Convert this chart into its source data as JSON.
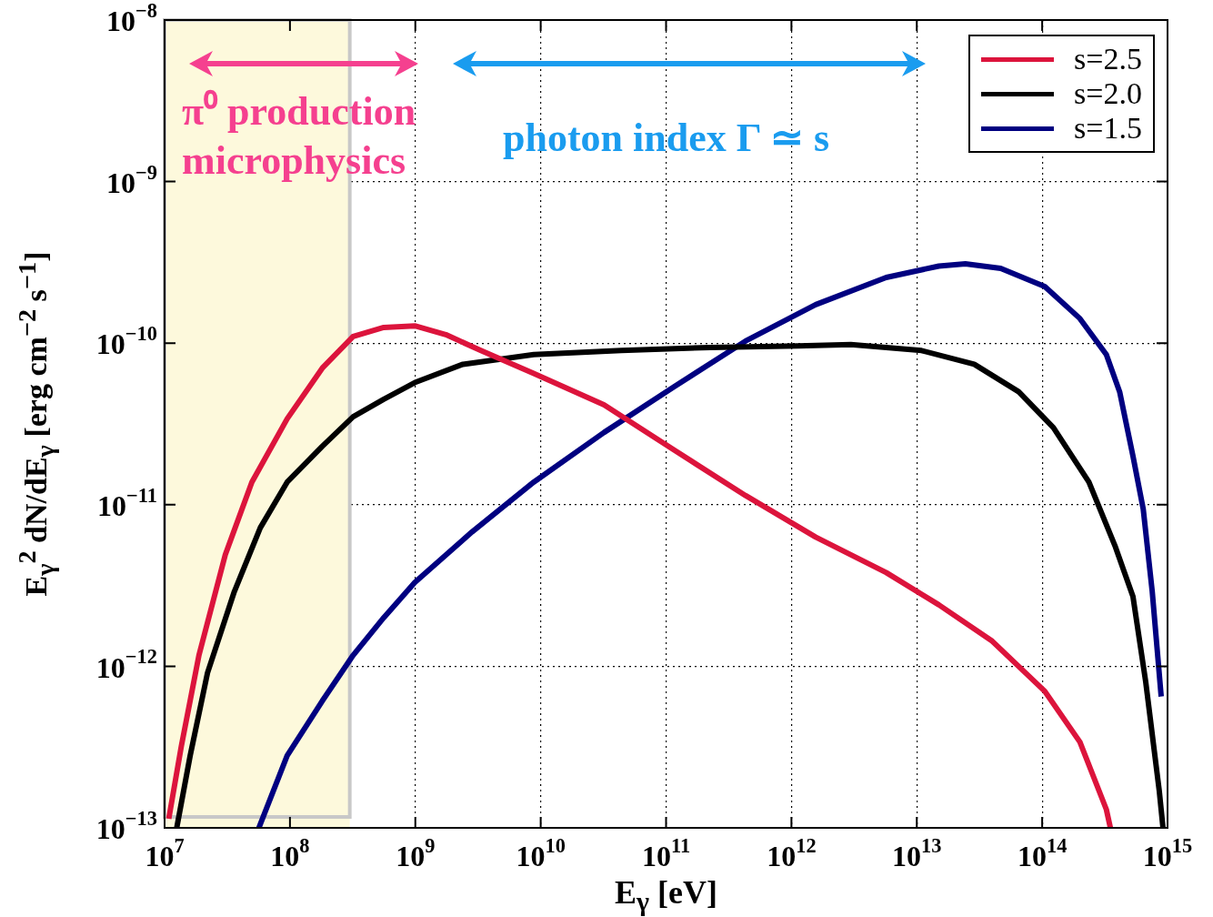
{
  "chart_data": {
    "type": "line",
    "xlabel": "E$_{γ}$ [eV]",
    "ylabel": "E$_{γ}$$^{2}$ dN/dE$_{γ}$ [erg cm$^{−2}$ s$^{−1}$]",
    "log": "xy",
    "grid": true,
    "legend": "top right",
    "xlim": [
      10000000.0,
      1000000000000000.0
    ],
    "ylim": [
      1e-13,
      1e-08
    ],
    "xticks": [
      {
        "value": 10000000.0,
        "label": "10$^{7}$"
      },
      {
        "value": 100000000.0,
        "label": "10$^{8}$"
      },
      {
        "value": 1000000000.0,
        "label": "10$^{9}$"
      },
      {
        "value": 10000000000.0,
        "label": "10$^{10}$"
      },
      {
        "value": 100000000000.0,
        "label": "10$^{11}$"
      },
      {
        "value": 1000000000000.0,
        "label": "10$^{12}$"
      },
      {
        "value": 10000000000000.0,
        "label": "10$^{13}$"
      },
      {
        "value": 100000000000000.0,
        "label": "10$^{14}$"
      },
      {
        "value": 1000000000000000.0,
        "label": "10$^{15}$"
      }
    ],
    "yticks": [
      {
        "value": 1e-13,
        "label": "10$^{−13}$"
      },
      {
        "value": 1e-12,
        "label": "10$^{−12}$"
      },
      {
        "value": 1e-11,
        "label": "10$^{−11}$"
      },
      {
        "value": 1e-10,
        "label": "10$^{−10}$"
      },
      {
        "value": 1e-09,
        "label": "10$^{−9}$"
      },
      {
        "value": 1e-08,
        "label": "10$^{−8}$"
      }
    ],
    "bands": [
      {
        "axis": "x",
        "from": 10000000.0,
        "to": 300000000.0,
        "color": "#fdf9dc"
      }
    ],
    "annotations": [
      "π⁰ production microphysics",
      "photon index Γ ≃ s"
    ],
    "series": [
      {
        "name": "s=2.5",
        "color": "#dc143c",
        "x": [
          10800000.0,
          13600000.0,
          18800000.0,
          30500000.0,
          49700000.0,
          95000000.0,
          181000000.0,
          319000000.0,
          560000000.0,
          990000000.0,
          1750000000.0,
          3330000000.0,
          8800000000.0,
          32000000000.0,
          117000000000.0,
          430000000000.0,
          1560000000000.0,
          5700000000000.0,
          15000000000000.0,
          40000000000000.0,
          105000000000000.0,
          200000000000000.0,
          325000000000000.0,
          350000000000000.0
        ],
        "values": [
          1.14e-13,
          3.2e-13,
          1.17e-12,
          4.9e-12,
          1.38e-11,
          3.4e-11,
          7e-11,
          1.1e-10,
          1.25e-10,
          1.28e-10,
          1.13e-10,
          9e-11,
          6.5e-11,
          4.15e-11,
          2.17e-11,
          1.14e-11,
          6.3e-12,
          3.8e-12,
          2.4e-12,
          1.43e-12,
          7e-13,
          3.4e-13,
          1.3e-13,
          1e-13
        ]
      },
      {
        "name": "s=2.0",
        "color": "#000000",
        "x": [
          12500000.0,
          16000000.0,
          22000000.0,
          36000000.0,
          58000000.0,
          95000000.0,
          181000000.0,
          319000000.0,
          560000000.0,
          990000000.0,
          2400000000.0,
          8800000000.0,
          44000000000.0,
          224000000000.0,
          1130000000000.0,
          2980000000000.0,
          10900000000000.0,
          28700000000000.0,
          65000000000000.0,
          123000000000000.0,
          236000000000000.0,
          380000000000000.0,
          530000000000000.0,
          670000000000000.0,
          860000000000000.0,
          920000000000000.0
        ],
        "values": [
          1e-13,
          2.8e-13,
          9.1e-13,
          2.9e-12,
          7.2e-12,
          1.38e-11,
          2.3e-11,
          3.5e-11,
          4.5e-11,
          5.7e-11,
          7.4e-11,
          8.5e-11,
          9e-11,
          9.4e-11,
          9.6e-11,
          9.8e-11,
          9e-11,
          7.4e-11,
          5e-11,
          3e-11,
          1.38e-11,
          5.6e-12,
          2.7e-12,
          8e-13,
          1.68e-13,
          1e-13
        ]
      },
      {
        "name": "s=1.5",
        "color": "#000080",
        "x": [
          56500000.0,
          95000000.0,
          181000000.0,
          319000000.0,
          560000000.0,
          990000000.0,
          2840000000.0,
          8800000000.0,
          32000000000.0,
          117000000000.0,
          430000000000.0,
          1560000000000.0,
          5700000000000.0,
          15000000000000.0,
          24400000000000.0,
          46700000000000.0,
          105000000000000.0,
          200000000000000.0,
          325000000000000.0,
          415000000000000.0,
          530000000000000.0,
          640000000000000.0,
          755000000000000.0,
          890000000000000.0
        ],
        "values": [
          1e-13,
          2.8e-13,
          6.1e-13,
          1.17e-12,
          2e-12,
          3.3e-12,
          6.8e-12,
          1.38e-11,
          2.8e-11,
          5.4e-11,
          1.03e-10,
          1.73e-10,
          2.55e-10,
          3e-10,
          3.1e-10,
          2.9e-10,
          2.24e-10,
          1.42e-10,
          8.5e-11,
          5e-11,
          2e-11,
          9.4e-12,
          2.9e-12,
          6.5e-13
        ]
      }
    ]
  }
}
